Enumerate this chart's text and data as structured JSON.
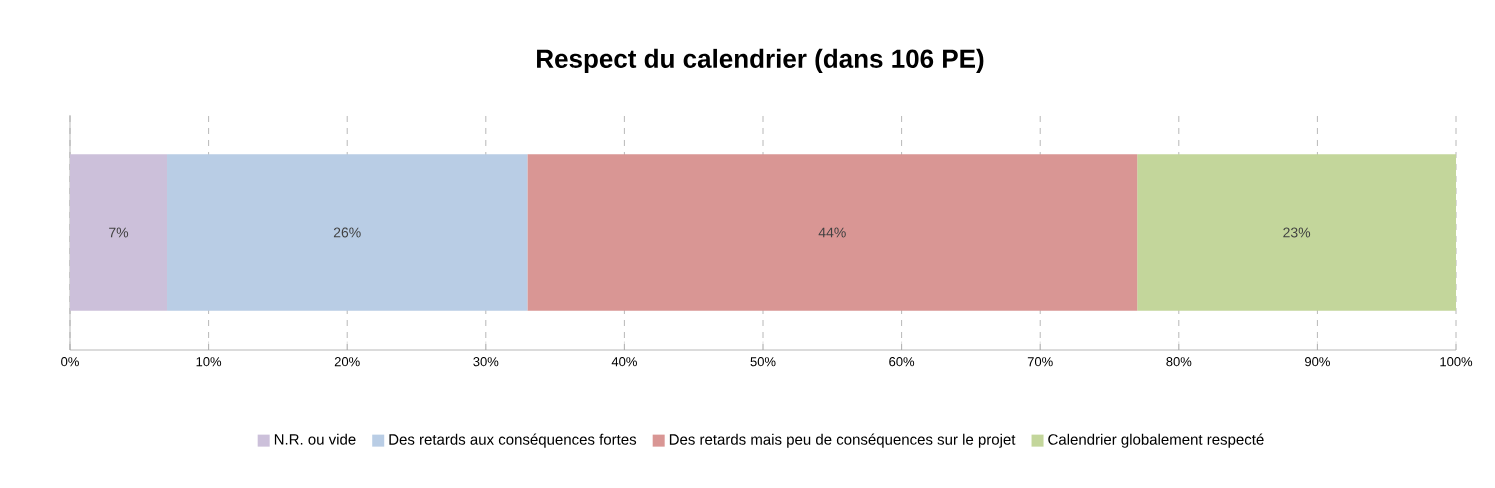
{
  "chart_data": {
    "type": "bar",
    "orientation": "horizontal",
    "stacked": true,
    "title": "Respect du calendrier (dans 106 PE)",
    "categories": [
      null
    ],
    "series": [
      {
        "name": "N.R. ou vide",
        "color": "#ccc0da",
        "values": [
          7
        ],
        "value_labels": [
          "7%"
        ]
      },
      {
        "name": "Des retards aux conséquences fortes",
        "color": "#b9cde5",
        "values": [
          26
        ],
        "value_labels": [
          "26%"
        ]
      },
      {
        "name": "Des retards mais peu de conséquences sur le projet",
        "color": "#d99694",
        "values": [
          44
        ],
        "value_labels": [
          "44%"
        ]
      },
      {
        "name": "Calendrier globalement respecté",
        "color": "#c3d69b",
        "values": [
          23
        ],
        "value_labels": [
          "23%"
        ]
      }
    ],
    "xlim": [
      0,
      100
    ],
    "xticks": [
      {
        "value": 0,
        "label": "0%"
      },
      {
        "value": 10,
        "label": "10%"
      },
      {
        "value": 20,
        "label": "20%"
      },
      {
        "value": 30,
        "label": "30%"
      },
      {
        "value": 40,
        "label": "40%"
      },
      {
        "value": 50,
        "label": "50%"
      },
      {
        "value": 60,
        "label": "60%"
      },
      {
        "value": 70,
        "label": "70%"
      },
      {
        "value": 80,
        "label": "80%"
      },
      {
        "value": 90,
        "label": "90%"
      },
      {
        "value": 100,
        "label": "100%"
      }
    ],
    "grid": "x",
    "legend": "bottom"
  }
}
